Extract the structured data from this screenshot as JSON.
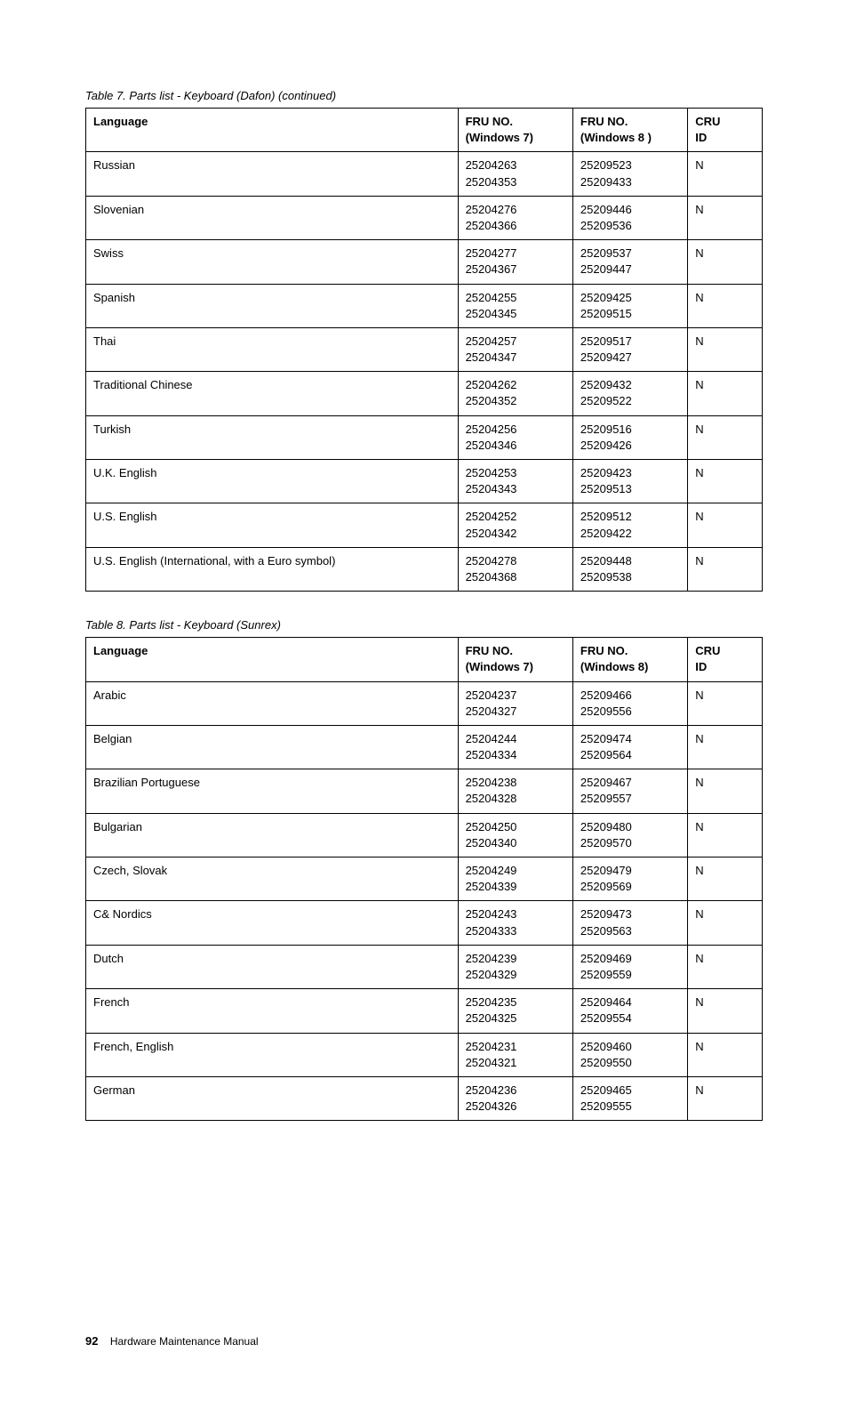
{
  "table7": {
    "caption": "Table 7.  Parts list - Keyboard (Dafon) (continued)",
    "headers": {
      "lang": "Language",
      "fru7a": "FRU NO.",
      "fru7b": "(Windows 7)",
      "fru8a": "FRU NO.",
      "fru8b": "(Windows 8 )",
      "cru1": "CRU",
      "cru2": "ID"
    },
    "rows": [
      {
        "lang": "Russian",
        "w7a": "25204263",
        "w7b": "25204353",
        "w8a": "25209523",
        "w8b": "25209433",
        "cru": "N"
      },
      {
        "lang": "Slovenian",
        "w7a": "25204276",
        "w7b": "25204366",
        "w8a": "25209446",
        "w8b": "25209536",
        "cru": "N"
      },
      {
        "lang": "Swiss",
        "w7a": "25204277",
        "w7b": "25204367",
        "w8a": "25209537",
        "w8b": "25209447",
        "cru": "N"
      },
      {
        "lang": "Spanish",
        "w7a": "25204255",
        "w7b": "25204345",
        "w8a": "25209425",
        "w8b": "25209515",
        "cru": "N"
      },
      {
        "lang": "Thai",
        "w7a": "25204257",
        "w7b": "25204347",
        "w8a": "25209517",
        "w8b": "25209427",
        "cru": "N"
      },
      {
        "lang": "Traditional Chinese",
        "w7a": "25204262",
        "w7b": "25204352",
        "w8a": "25209432",
        "w8b": "25209522",
        "cru": "N"
      },
      {
        "lang": "Turkish",
        "w7a": "25204256",
        "w7b": "25204346",
        "w8a": "25209516",
        "w8b": "25209426",
        "cru": "N"
      },
      {
        "lang": "U.K. English",
        "w7a": "25204253",
        "w7b": "25204343",
        "w8a": "25209423",
        "w8b": "25209513",
        "cru": "N"
      },
      {
        "lang": "U.S. English",
        "w7a": "25204252",
        "w7b": "25204342",
        "w8a": "25209512",
        "w8b": "25209422",
        "cru": "N"
      },
      {
        "lang": "U.S. English (International, with a Euro symbol)",
        "w7a": "25204278",
        "w7b": "25204368",
        "w8a": "25209448",
        "w8b": "25209538",
        "cru": "N"
      }
    ]
  },
  "table8": {
    "caption": "Table 8.  Parts list - Keyboard (Sunrex)",
    "headers": {
      "lang": "Language",
      "fru7a": "FRU NO.",
      "fru7b": "(Windows 7)",
      "fru8a": "FRU NO.",
      "fru8b": "(Windows 8)",
      "cru1": "CRU",
      "cru2": "ID"
    },
    "rows": [
      {
        "lang": "Arabic",
        "w7a": "25204237",
        "w7b": "25204327",
        "w8a": "25209466",
        "w8b": "25209556",
        "cru": "N"
      },
      {
        "lang": "Belgian",
        "w7a": "25204244",
        "w7b": "25204334",
        "w8a": "25209474",
        "w8b": "25209564",
        "cru": "N"
      },
      {
        "lang": "Brazilian Portuguese",
        "w7a": "25204238",
        "w7b": "25204328",
        "w8a": "25209467",
        "w8b": "25209557",
        "cru": "N"
      },
      {
        "lang": "Bulgarian",
        "w7a": "25204250",
        "w7b": "25204340",
        "w8a": "25209480",
        "w8b": "25209570",
        "cru": "N"
      },
      {
        "lang": "Czech, Slovak",
        "w7a": "25204249",
        "w7b": "25204339",
        "w8a": "25209479",
        "w8b": "25209569",
        "cru": "N"
      },
      {
        "lang": "C& Nordics",
        "w7a": "25204243",
        "w7b": "25204333",
        "w8a": "25209473",
        "w8b": "25209563",
        "cru": "N"
      },
      {
        "lang": "Dutch",
        "w7a": "25204239",
        "w7b": "25204329",
        "w8a": "25209469",
        "w8b": "25209559",
        "cru": "N"
      },
      {
        "lang": "French",
        "w7a": "25204235",
        "w7b": "25204325",
        "w8a": "25209464",
        "w8b": "25209554",
        "cru": "N"
      },
      {
        "lang": "French, English",
        "w7a": "25204231",
        "w7b": "25204321",
        "w8a": "25209460",
        "w8b": "25209550",
        "cru": "N"
      },
      {
        "lang": "German",
        "w7a": "25204236",
        "w7b": "25204326",
        "w8a": "25209465",
        "w8b": "25209555",
        "cru": "N"
      }
    ]
  },
  "footer": {
    "pageNum": "92",
    "title": "Hardware Maintenance Manual"
  }
}
